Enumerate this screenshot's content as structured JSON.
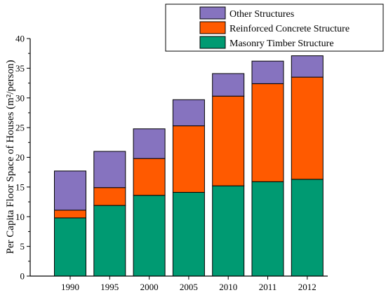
{
  "chart_data": {
    "type": "bar",
    "stacked": true,
    "categories": [
      "1990",
      "1995",
      "2000",
      "2005",
      "2010",
      "2011",
      "2012"
    ],
    "series": [
      {
        "name": "Masonry Timber Structure",
        "color": "#009a72",
        "values": [
          9.8,
          11.9,
          13.6,
          14.1,
          15.2,
          15.9,
          16.3
        ]
      },
      {
        "name": "Reinforced Concrete Structure",
        "color": "#ff5a00",
        "values": [
          1.3,
          3.0,
          6.2,
          11.2,
          15.1,
          16.5,
          17.2
        ]
      },
      {
        "name": "Other Structures",
        "color": "#8673bf",
        "values": [
          6.6,
          6.1,
          5.0,
          4.4,
          3.8,
          3.8,
          3.6
        ]
      }
    ],
    "xlabel": "",
    "ylabel": "Per Capita Floor Space of Houses (m²/person)",
    "ylim": [
      0,
      40
    ],
    "yticks": [
      0,
      5,
      10,
      15,
      20,
      25,
      30,
      35,
      40
    ],
    "legend_position": "top-right",
    "legend_order": [
      "Other Structures",
      "Reinforced Concrete Structure",
      "Masonry Timber Structure"
    ],
    "grid": false
  }
}
